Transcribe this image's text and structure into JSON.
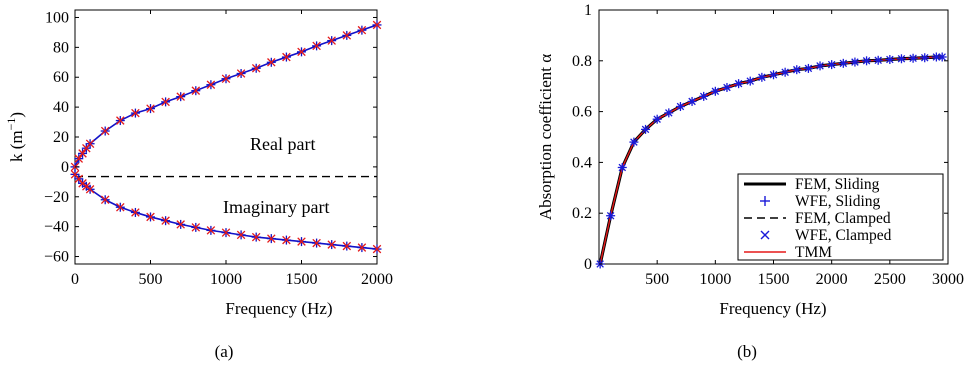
{
  "chart_data": [
    {
      "type": "line",
      "subcaption": "(a)",
      "xlabel": "Frequency (Hz)",
      "ylabel": "k (m",
      "ylabel_sup": "−1",
      "ylabel_tail": ")",
      "xlim": [
        0,
        2000
      ],
      "ylim": [
        -65,
        105
      ],
      "xticks": [
        0,
        500,
        1000,
        1500,
        2000
      ],
      "yticks": [
        -60,
        -40,
        -20,
        0,
        20,
        40,
        60,
        80,
        100
      ],
      "annotations": {
        "real": "Real part",
        "imag": "Imaginary part"
      },
      "dashed_line_y": -6.5,
      "series": [
        {
          "x": [
            0,
            25,
            50,
            75,
            100,
            200,
            300,
            400,
            500,
            600,
            700,
            800,
            900,
            1000,
            1100,
            1200,
            1300,
            1400,
            1500,
            1600,
            1700,
            1800,
            1900,
            2000
          ],
          "y": [
            0,
            5.5,
            9.0,
            12.5,
            15.5,
            24,
            31,
            36,
            39,
            43.5,
            47,
            51,
            55,
            59,
            62.5,
            66,
            70,
            73.5,
            77,
            81,
            84.5,
            88,
            91.5,
            95
          ]
        },
        {
          "x": [
            0,
            25,
            50,
            75,
            100,
            200,
            300,
            400,
            500,
            600,
            700,
            800,
            900,
            1000,
            1100,
            1200,
            1300,
            1400,
            1500,
            1600,
            1700,
            1800,
            1900,
            2000
          ],
          "y": [
            -5,
            -8,
            -11,
            -13,
            -15,
            -22,
            -27,
            -30.5,
            -33.5,
            -36,
            -38.5,
            -40.5,
            -42.5,
            -44,
            -45.5,
            -47,
            -48,
            -49,
            -50,
            -51,
            -52,
            -53,
            -54,
            -55
          ]
        }
      ],
      "colors": {
        "line": "#1212c8",
        "marker": "#e51919"
      }
    },
    {
      "type": "line",
      "subcaption": "(b)",
      "xlabel": "Frequency (Hz)",
      "ylabel": "Absorption coefficient α",
      "xlim": [
        0,
        3000
      ],
      "ylim": [
        0,
        1
      ],
      "xticks": [
        500,
        1000,
        1500,
        2000,
        2500,
        3000
      ],
      "yticks": [
        0,
        0.2,
        0.4,
        0.6,
        0.8,
        1
      ],
      "ytick_labels": [
        "0",
        "0.2",
        "0.4",
        "0.6",
        "0.8",
        "1"
      ],
      "x": [
        10,
        100,
        200,
        300,
        400,
        500,
        600,
        700,
        800,
        900,
        1000,
        1100,
        1200,
        1300,
        1400,
        1500,
        1600,
        1700,
        1800,
        1900,
        2000,
        2100,
        2200,
        2300,
        2400,
        2500,
        2600,
        2700,
        2800,
        2900,
        2950
      ],
      "y": [
        0,
        0.19,
        0.38,
        0.48,
        0.53,
        0.57,
        0.595,
        0.62,
        0.64,
        0.66,
        0.68,
        0.695,
        0.71,
        0.72,
        0.735,
        0.745,
        0.755,
        0.765,
        0.77,
        0.78,
        0.785,
        0.79,
        0.795,
        0.8,
        0.802,
        0.805,
        0.808,
        0.81,
        0.812,
        0.815,
        0.815
      ],
      "legend": {
        "placement": "bottom-right",
        "entries": [
          "FEM, Sliding",
          "WFE, Sliding",
          "FEM, Clamped",
          "WFE, Clamped",
          "TMM"
        ]
      },
      "colors": {
        "fem_sliding": "#000000",
        "wfe_sliding": "#1a1ad9",
        "fem_clamped": "#000000",
        "wfe_clamped": "#1a1ad9",
        "tmm": "#e51919"
      }
    }
  ]
}
